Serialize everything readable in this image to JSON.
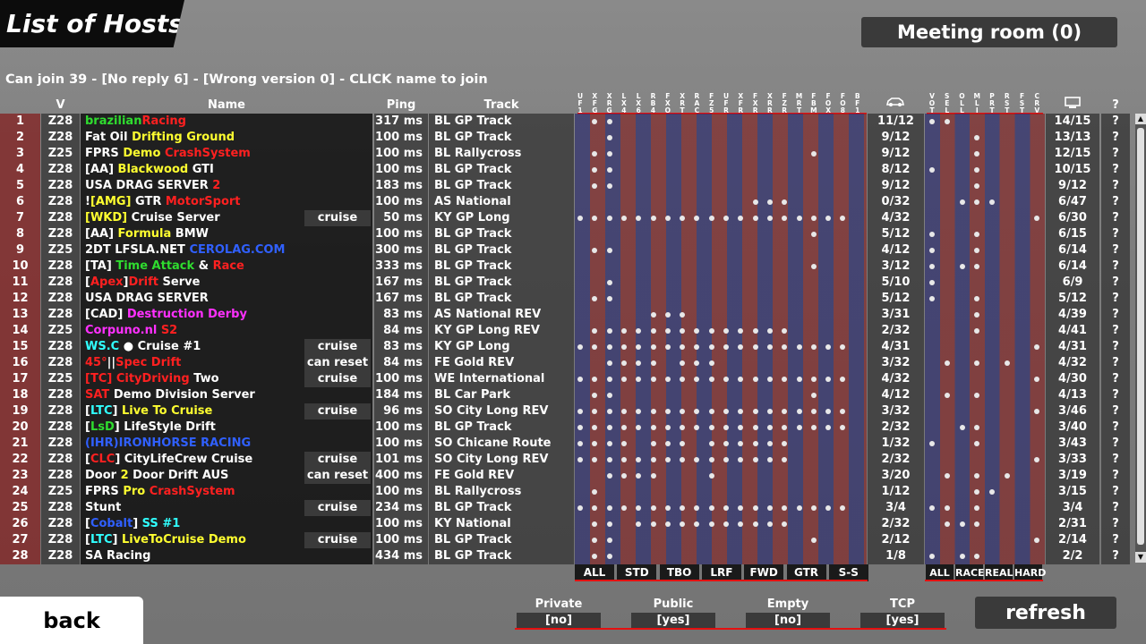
{
  "title": "List of Hosts",
  "meeting_room": "Meeting room (0)",
  "info_line": "Can join 39 - [No reply 6] - [Wrong version 0] - CLICK name to join",
  "headers": {
    "v": "V",
    "name": "Name",
    "ping": "Ping",
    "track": "Track",
    "question": "?"
  },
  "car_columns": [
    "UF1",
    "XFG",
    "XRG",
    "LX4",
    "LX6",
    "RB4",
    "FXO",
    "XRT",
    "RAC",
    "FZ5",
    "UFR",
    "XFR",
    "FXR",
    "XRR",
    "FZR",
    "MRT",
    "FBM",
    "FOX",
    "FO8",
    "BF1"
  ],
  "flag_columns": [
    "VOT",
    "SEL",
    "OLL",
    "MLI",
    "PRT",
    "RST",
    "FST",
    "CRV"
  ],
  "icons": {
    "cars": "car-icon",
    "connections": "monitor-icon"
  },
  "colors": {
    "accent_red": "#e41010",
    "no_cell": "#822a2a"
  },
  "rows": [
    {
      "no": "1",
      "v": "Z28",
      "name": [
        [
          "brazilian",
          "#2fdc2f"
        ],
        [
          "Racing",
          "#ff2020"
        ]
      ],
      "tag": "",
      "ping": "317 ms",
      "track": "BL GP Track",
      "cars": [
        1,
        2
      ],
      "count": "11/12",
      "flags": [
        0,
        1
      ],
      "conn": "14/15",
      "q": "?"
    },
    {
      "no": "2",
      "v": "Z28",
      "name": [
        [
          "Fat Oil ",
          "#fff"
        ],
        [
          "Drifting Ground",
          "#ffff30"
        ]
      ],
      "tag": "",
      "ping": "100 ms",
      "track": "BL GP Track",
      "cars": [
        2
      ],
      "count": "9/12",
      "flags": [
        3
      ],
      "conn": "13/13",
      "q": "?"
    },
    {
      "no": "3",
      "v": "Z25",
      "name": [
        [
          "FPRS ",
          "#fff"
        ],
        [
          "Demo ",
          "#ffff30"
        ],
        [
          "CrashSystem",
          "#ff2020"
        ]
      ],
      "tag": "",
      "ping": "100 ms",
      "track": "BL Rallycross",
      "cars": [
        1,
        2,
        16
      ],
      "count": "9/12",
      "flags": [
        3
      ],
      "conn": "12/15",
      "q": "?"
    },
    {
      "no": "4",
      "v": "Z28",
      "name": [
        [
          "[AA] ",
          "#fff"
        ],
        [
          "Blackwood ",
          "#ffff30"
        ],
        [
          "GTI",
          "#fff"
        ]
      ],
      "tag": "",
      "ping": "100 ms",
      "track": "BL GP Track",
      "cars": [
        1,
        2
      ],
      "count": "8/12",
      "flags": [
        0,
        3
      ],
      "conn": "10/15",
      "q": "?"
    },
    {
      "no": "5",
      "v": "Z28",
      "name": [
        [
          "USA DRAG SERVER ",
          "#fff"
        ],
        [
          "2",
          "#ff2020"
        ]
      ],
      "tag": "",
      "ping": "183 ms",
      "track": "BL GP Track",
      "cars": [
        1,
        2
      ],
      "count": "9/12",
      "flags": [
        3
      ],
      "conn": "9/12",
      "q": "?"
    },
    {
      "no": "6",
      "v": "Z28",
      "name": [
        [
          "!",
          "#fff"
        ],
        [
          "[AMG]",
          "#ffff30"
        ],
        [
          " GTR ",
          "#fff"
        ],
        [
          "MotorSport",
          "#ff2020"
        ]
      ],
      "tag": "",
      "ping": "100 ms",
      "track": "AS National",
      "cars": [
        12,
        13,
        14
      ],
      "count": "0/32",
      "flags": [
        2,
        3,
        4
      ],
      "conn": "6/47",
      "q": "?"
    },
    {
      "no": "7",
      "v": "Z28",
      "name": [
        [
          "[WKD]",
          "#ffff30"
        ],
        [
          " Cruise Server",
          "#fff"
        ]
      ],
      "tag": "cruise",
      "ping": "50 ms",
      "track": "KY GP Long",
      "cars": [
        0,
        1,
        2,
        3,
        4,
        5,
        6,
        7,
        8,
        9,
        10,
        11,
        12,
        13,
        14,
        15,
        16,
        17,
        18
      ],
      "count": "4/32",
      "flags": [
        7
      ],
      "conn": "6/30",
      "q": "?"
    },
    {
      "no": "8",
      "v": "Z28",
      "name": [
        [
          "[AA] ",
          "#fff"
        ],
        [
          "Formula ",
          "#ffff30"
        ],
        [
          "BMW",
          "#fff"
        ]
      ],
      "tag": "",
      "ping": "100 ms",
      "track": "BL GP Track",
      "cars": [
        16
      ],
      "count": "5/12",
      "flags": [
        0,
        3
      ],
      "conn": "6/15",
      "q": "?"
    },
    {
      "no": "9",
      "v": "Z25",
      "name": [
        [
          "2DT LFSLA.NET ",
          "#fff"
        ],
        [
          "CEROLAG.COM",
          "#3060ff"
        ]
      ],
      "tag": "",
      "ping": "300 ms",
      "track": "BL GP Track",
      "cars": [
        1,
        2
      ],
      "count": "4/12",
      "flags": [
        0,
        3
      ],
      "conn": "6/14",
      "q": "?"
    },
    {
      "no": "10",
      "v": "Z28",
      "name": [
        [
          "[TA] ",
          "#fff"
        ],
        [
          "Time Attack ",
          "#2fdc2f"
        ],
        [
          "& ",
          "#fff"
        ],
        [
          "Race",
          "#ff2020"
        ]
      ],
      "tag": "",
      "ping": "333 ms",
      "track": "BL GP Track",
      "cars": [
        16
      ],
      "count": "3/12",
      "flags": [
        0,
        2,
        3
      ],
      "conn": "6/14",
      "q": "?"
    },
    {
      "no": "11",
      "v": "Z28",
      "name": [
        [
          "[",
          "#fff"
        ],
        [
          "Apex",
          "#ff2020"
        ],
        [
          "]",
          "#fff"
        ],
        [
          "Drift ",
          "#ff2020"
        ],
        [
          "Serve",
          "#fff"
        ]
      ],
      "tag": "",
      "ping": "167 ms",
      "track": "BL GP Track",
      "cars": [
        2
      ],
      "count": "5/10",
      "flags": [
        0
      ],
      "conn": "6/9",
      "q": "?"
    },
    {
      "no": "12",
      "v": "Z28",
      "name": [
        [
          "USA DRAG SERVER",
          "#fff"
        ]
      ],
      "tag": "",
      "ping": "167 ms",
      "track": "BL GP Track",
      "cars": [
        1,
        2
      ],
      "count": "5/12",
      "flags": [
        0,
        3
      ],
      "conn": "5/12",
      "q": "?"
    },
    {
      "no": "13",
      "v": "Z28",
      "name": [
        [
          "[CAD] ",
          "#fff"
        ],
        [
          "Destruction Derby",
          "#ff30ff"
        ]
      ],
      "tag": "",
      "ping": "83 ms",
      "track": "AS National REV",
      "cars": [
        5,
        6,
        7
      ],
      "count": "3/31",
      "flags": [
        3
      ],
      "conn": "4/39",
      "q": "?"
    },
    {
      "no": "14",
      "v": "Z25",
      "name": [
        [
          "Corpuno.nl ",
          "#ff30ff"
        ],
        [
          "S2",
          "#ff2020"
        ]
      ],
      "tag": "",
      "ping": "84 ms",
      "track": "KY GP Long REV",
      "cars": [
        1,
        2,
        3,
        4,
        5,
        6,
        7,
        8,
        9,
        10,
        11,
        12,
        13,
        14
      ],
      "count": "2/32",
      "flags": [
        3
      ],
      "conn": "4/41",
      "q": "?"
    },
    {
      "no": "15",
      "v": "Z28",
      "name": [
        [
          "WS.C ",
          "#30ffff"
        ],
        [
          "● Cruise #1",
          "#fff"
        ]
      ],
      "tag": "cruise",
      "ping": "83 ms",
      "track": "KY GP Long",
      "cars": [
        0,
        1,
        2,
        3,
        4,
        5,
        6,
        7,
        8,
        9,
        10,
        11,
        12,
        13,
        14,
        15,
        16,
        17,
        18
      ],
      "count": "4/31",
      "flags": [
        7
      ],
      "conn": "4/31",
      "q": "?"
    },
    {
      "no": "16",
      "v": "Z28",
      "name": [
        [
          "45°",
          "#ff2020"
        ],
        [
          "||",
          "#fff"
        ],
        [
          "Spec Drift",
          "#ff2020"
        ]
      ],
      "tag": "can reset",
      "ping": "84 ms",
      "track": "FE Gold REV",
      "cars": [
        2,
        3,
        4,
        5,
        7,
        8,
        9
      ],
      "count": "3/32",
      "flags": [
        1,
        3,
        5
      ],
      "conn": "4/32",
      "q": "?"
    },
    {
      "no": "17",
      "v": "Z25",
      "name": [
        [
          "[TC] CityDriving ",
          "#ff2020"
        ],
        [
          "Two",
          "#fff"
        ]
      ],
      "tag": "cruise",
      "ping": "100 ms",
      "track": "WE International",
      "cars": [
        0,
        1,
        2,
        3,
        4,
        5,
        6,
        7,
        8,
        9,
        10,
        11,
        12,
        13,
        14,
        15,
        16,
        17,
        18
      ],
      "count": "4/32",
      "flags": [
        7
      ],
      "conn": "4/30",
      "q": "?"
    },
    {
      "no": "18",
      "v": "Z28",
      "name": [
        [
          "SAT ",
          "#ff2020"
        ],
        [
          "Demo Division Server",
          "#fff"
        ]
      ],
      "tag": "",
      "ping": "184 ms",
      "track": "BL Car Park",
      "cars": [
        1,
        2,
        16
      ],
      "count": "4/12",
      "flags": [
        1,
        3
      ],
      "conn": "4/13",
      "q": "?"
    },
    {
      "no": "19",
      "v": "Z28",
      "name": [
        [
          "[",
          "#fff"
        ],
        [
          "LTC",
          "#30ffff"
        ],
        [
          "] ",
          "#fff"
        ],
        [
          "Live To Cruise",
          "#ffff30"
        ]
      ],
      "tag": "cruise",
      "ping": "96 ms",
      "track": "SO City Long REV",
      "cars": [
        0,
        1,
        2,
        3,
        4,
        5,
        6,
        7,
        8,
        9,
        10,
        11,
        12,
        13,
        14,
        15,
        16,
        17,
        18
      ],
      "count": "3/32",
      "flags": [
        7
      ],
      "conn": "3/46",
      "q": "?"
    },
    {
      "no": "20",
      "v": "Z28",
      "name": [
        [
          "[",
          "#fff"
        ],
        [
          "LsD",
          "#2fdc2f"
        ],
        [
          "] LifeStyle Drift",
          "#fff"
        ]
      ],
      "tag": "",
      "ping": "100 ms",
      "track": "BL GP Track",
      "cars": [
        0,
        1,
        2,
        3,
        4,
        5,
        6,
        7,
        8,
        9,
        10,
        11,
        12,
        13,
        14,
        15,
        16,
        17,
        18
      ],
      "count": "2/32",
      "flags": [
        2,
        3
      ],
      "conn": "3/40",
      "q": "?"
    },
    {
      "no": "21",
      "v": "Z28",
      "name": [
        [
          "(IHR)",
          "#3060ff"
        ],
        [
          "IRONHORSE RACING",
          "#3060ff"
        ]
      ],
      "tag": "",
      "ping": "100 ms",
      "track": "SO Chicane Route",
      "cars": [
        0,
        1,
        2,
        3,
        5,
        6,
        7,
        9,
        10,
        11,
        12,
        13,
        14
      ],
      "count": "1/32",
      "flags": [
        0,
        3
      ],
      "conn": "3/43",
      "q": "?"
    },
    {
      "no": "22",
      "v": "Z28",
      "name": [
        [
          "[",
          "#fff"
        ],
        [
          "CLC",
          "#ff2020"
        ],
        [
          "] CityLifeCrew Cruise",
          "#fff"
        ]
      ],
      "tag": "cruise",
      "ping": "101 ms",
      "track": "SO City Long REV",
      "cars": [
        0,
        1,
        2,
        3,
        4,
        5,
        6,
        7,
        8,
        9,
        10,
        11,
        12,
        13,
        14
      ],
      "count": "2/32",
      "flags": [
        7
      ],
      "conn": "3/33",
      "q": "?"
    },
    {
      "no": "23",
      "v": "Z28",
      "name": [
        [
          "Door ",
          "#fff"
        ],
        [
          "2 ",
          "#ffff30"
        ],
        [
          "Door Drift AUS",
          "#fff"
        ]
      ],
      "tag": "can reset",
      "ping": "400 ms",
      "track": "FE Gold REV",
      "cars": [
        2,
        3,
        4,
        5,
        9
      ],
      "count": "3/20",
      "flags": [
        1,
        3,
        5
      ],
      "conn": "3/19",
      "q": "?"
    },
    {
      "no": "24",
      "v": "Z25",
      "name": [
        [
          "FPRS ",
          "#fff"
        ],
        [
          "Pro ",
          "#ffff30"
        ],
        [
          "CrashSystem",
          "#ff2020"
        ]
      ],
      "tag": "",
      "ping": "100 ms",
      "track": "BL Rallycross",
      "cars": [
        1
      ],
      "count": "1/12",
      "flags": [
        3,
        4
      ],
      "conn": "3/15",
      "q": "?"
    },
    {
      "no": "25",
      "v": "Z28",
      "name": [
        [
          "Stunt",
          "#fff"
        ]
      ],
      "tag": "cruise",
      "ping": "234 ms",
      "track": "BL GP Track",
      "cars": [
        0,
        1,
        2,
        3,
        4,
        5,
        6,
        7,
        8,
        9,
        10,
        11,
        12,
        13,
        14,
        15,
        16,
        17,
        18
      ],
      "count": "3/4",
      "flags": [
        0,
        1,
        3
      ],
      "conn": "3/4",
      "q": "?"
    },
    {
      "no": "26",
      "v": "Z28",
      "name": [
        [
          "[",
          "#fff"
        ],
        [
          "Cobalt",
          "#3060ff"
        ],
        [
          "] ",
          "#fff"
        ],
        [
          "SS #1",
          "#30ffff"
        ]
      ],
      "tag": "",
      "ping": "100 ms",
      "track": "KY National",
      "cars": [
        1,
        2,
        4,
        5,
        6,
        7,
        8,
        9,
        10,
        11,
        12,
        13,
        14
      ],
      "count": "2/32",
      "flags": [
        1,
        2,
        3
      ],
      "conn": "2/31",
      "q": "?"
    },
    {
      "no": "27",
      "v": "Z28",
      "name": [
        [
          "[",
          "#fff"
        ],
        [
          "LTC",
          "#30ffff"
        ],
        [
          "] ",
          "#fff"
        ],
        [
          "LiveToCruise Demo",
          "#ffff30"
        ]
      ],
      "tag": "cruise",
      "ping": "100 ms",
      "track": "BL GP Track",
      "cars": [
        1,
        2,
        16
      ],
      "count": "2/12",
      "flags": [
        7
      ],
      "conn": "2/14",
      "q": "?"
    },
    {
      "no": "28",
      "v": "Z28",
      "name": [
        [
          "SA Racing",
          "#fff"
        ]
      ],
      "tag": "",
      "ping": "434 ms",
      "track": "BL GP Track",
      "cars": [
        1,
        2
      ],
      "count": "1/8",
      "flags": [
        0,
        2,
        3
      ],
      "conn": "2/2",
      "q": "?"
    }
  ],
  "car_filters": [
    "ALL",
    "STD",
    "TBO",
    "LRF",
    "FWD",
    "GTR",
    "S-S"
  ],
  "mode_filters": [
    "ALL",
    "RACE",
    "REAL",
    "HARD"
  ],
  "filters": [
    {
      "label": "Private",
      "value": "[no]"
    },
    {
      "label": "Public",
      "value": "[yes]"
    },
    {
      "label": "Empty",
      "value": "[no]"
    },
    {
      "label": "TCP",
      "value": "[yes]"
    }
  ],
  "back_label": "back",
  "refresh_label": "refresh"
}
